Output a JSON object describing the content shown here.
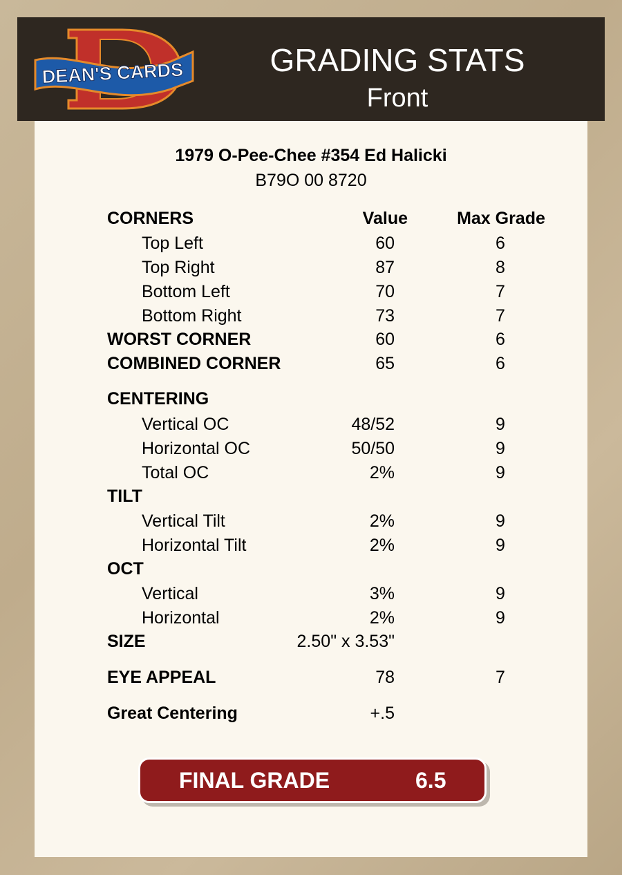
{
  "header": {
    "logo_text": "DEAN'S CARDS",
    "title": "GRADING STATS",
    "subtitle": "Front"
  },
  "card": {
    "name": "1979 O-Pee-Chee #354 Ed Halicki",
    "cert": "B79O 00 8720"
  },
  "columns": {
    "value": "Value",
    "max_grade": "Max Grade"
  },
  "rows": [
    {
      "label": "CORNERS",
      "type": "hdr"
    },
    {
      "label": "Top Left",
      "value": "60",
      "max": "6",
      "type": "sub"
    },
    {
      "label": "Top Right",
      "value": "87",
      "max": "8",
      "type": "sub"
    },
    {
      "label": "Bottom Left",
      "value": "70",
      "max": "7",
      "type": "sub"
    },
    {
      "label": "Bottom Right",
      "value": "73",
      "max": "7",
      "type": "sub"
    },
    {
      "label": "WORST CORNER",
      "value": "60",
      "max": "6",
      "type": "bold"
    },
    {
      "label": "COMBINED CORNER",
      "value": "65",
      "max": "6",
      "type": "bold"
    },
    {
      "label": "CENTERING",
      "type": "bold"
    },
    {
      "label": "Vertical OC",
      "value": "48/52",
      "max": "9",
      "type": "sub"
    },
    {
      "label": "Horizontal OC",
      "value": "50/50",
      "max": "9",
      "type": "sub"
    },
    {
      "label": "Total OC",
      "value": "2%",
      "max": "9",
      "type": "sub"
    },
    {
      "label": "TILT",
      "type": "bold"
    },
    {
      "label": "Vertical Tilt",
      "value": "2%",
      "max": "9",
      "type": "sub"
    },
    {
      "label": "Horizontal Tilt",
      "value": "2%",
      "max": "9",
      "type": "sub"
    },
    {
      "label": "OCT",
      "type": "bold"
    },
    {
      "label": "Vertical",
      "value": "3%",
      "max": "9",
      "type": "sub"
    },
    {
      "label": "Horizontal",
      "value": "2%",
      "max": "9",
      "type": "sub"
    },
    {
      "label": "SIZE",
      "value": "2.50\" x 3.53\"",
      "type": "bold"
    },
    {
      "label": "EYE APPEAL",
      "value": "78",
      "max": "7",
      "type": "bold"
    },
    {
      "label": "Great Centering",
      "value": "+.5",
      "type": "bold"
    }
  ],
  "final": {
    "label": "FINAL GRADE",
    "value": "6.5"
  },
  "colors": {
    "header_bg": "#2e2720",
    "panel_bg": "#fbf7ee",
    "final_bg": "#8f1b1c"
  }
}
